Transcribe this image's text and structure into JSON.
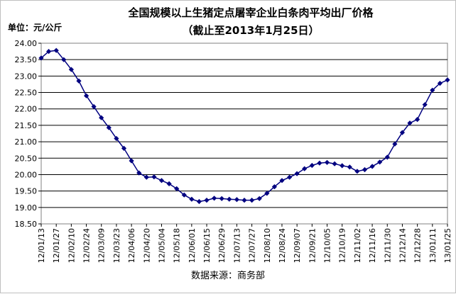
{
  "chart_data": {
    "type": "line",
    "title": "全国规模以上生猪定点屠宰企业白条肉平均出厂价格",
    "subtitle": "（截止至2013年1月25日）",
    "unit_label": "单位：元/公斤",
    "source_label": "数据来源：商务部",
    "ylim": [
      18.5,
      24.0
    ],
    "y_ticks": [
      "18.50",
      "19.00",
      "19.50",
      "20.00",
      "20.50",
      "21.00",
      "21.50",
      "22.00",
      "22.50",
      "23.00",
      "23.50",
      "24.00"
    ],
    "grid": "horizontal",
    "line_color": "#000080",
    "marker_color": "#000080",
    "x_tick_labels": [
      "12/01/13",
      "12/01/27",
      "12/02/10",
      "12/02/24",
      "12/03/09",
      "12/03/23",
      "12/04/06",
      "12/04/20",
      "12/05/04",
      "12/05/18",
      "12/06/01",
      "12/06/15",
      "12/06/29",
      "12/07/13",
      "12/07/27",
      "12/08/10",
      "12/08/24",
      "12/09/07",
      "12/09/21",
      "12/10/05",
      "12/10/19",
      "12/11/02",
      "12/11/16",
      "12/11/30",
      "12/12/14",
      "12/12/28",
      "13/01/11",
      "13/01/25"
    ],
    "series": [
      {
        "values": [
          23.55,
          23.75,
          23.78,
          23.5,
          23.2,
          22.85,
          22.4,
          22.07,
          21.73,
          21.43,
          21.1,
          20.8,
          20.42,
          20.05,
          19.92,
          19.93,
          19.82,
          19.72,
          19.57,
          19.38,
          19.25,
          19.18,
          19.22,
          19.28,
          19.27,
          19.25,
          19.24,
          19.22,
          19.22,
          19.27,
          19.43,
          19.63,
          19.82,
          19.92,
          20.03,
          20.18,
          20.28,
          20.35,
          20.37,
          20.33,
          20.27,
          20.23,
          20.1,
          20.15,
          20.25,
          20.38,
          20.53,
          20.93,
          21.28,
          21.57,
          21.68,
          22.13,
          22.57,
          22.78,
          22.88
        ]
      }
    ]
  }
}
